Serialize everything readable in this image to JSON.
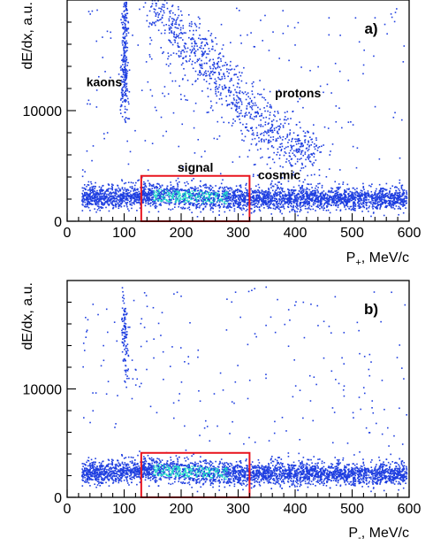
{
  "chart_data": [
    {
      "type": "scatter",
      "panel_label": "a)",
      "xlabel": "P",
      "xlabel_sub": "+",
      "xlabel_unit": ", MeV/c",
      "ylabel": "dE/dx, a.u.",
      "xlim": [
        0,
        600
      ],
      "ylim": [
        0,
        20000
      ],
      "x_ticks": [
        0,
        100,
        200,
        300,
        400,
        500,
        600
      ],
      "y_tick_labels": [
        "0",
        "10000"
      ],
      "y_ticks": [
        0,
        10000
      ],
      "annotations": [
        {
          "text": "kaons",
          "x": 65,
          "y": 12200
        },
        {
          "text": "protons",
          "x": 405,
          "y": 11200
        },
        {
          "text": "signal",
          "x": 225,
          "y": 4500
        },
        {
          "text": "cosmic",
          "x": 372,
          "y": 3800
        }
      ],
      "selection_box": {
        "x": [
          130,
          320
        ],
        "y": [
          0,
          4100
        ],
        "color": "#e8141e"
      },
      "populations": [
        {
          "name": "kaons",
          "points": [
            [
              100,
              16500
            ],
            [
              98,
              15000
            ],
            [
              102,
              14000
            ],
            [
              100,
              13000
            ],
            [
              97,
              12000
            ],
            [
              101,
              11500
            ],
            [
              99,
              17500
            ],
            [
              103,
              18500
            ]
          ]
        },
        {
          "name": "protons",
          "points": [
            [
              155,
              19500
            ],
            [
              175,
              18000
            ],
            [
              200,
              16500
            ],
            [
              225,
              15000
            ],
            [
              250,
              14000
            ],
            [
              275,
              12500
            ],
            [
              300,
              11000
            ],
            [
              325,
              9800
            ],
            [
              350,
              8500
            ],
            [
              375,
              7500
            ],
            [
              400,
              6800
            ],
            [
              430,
              6000
            ]
          ]
        },
        {
          "name": "signal + cosmic band",
          "points": [
            [
              30,
              2200
            ],
            [
              60,
              2250
            ],
            [
              100,
              2300
            ],
            [
              150,
              2400
            ],
            [
              200,
              2300
            ],
            [
              250,
              2200
            ],
            [
              300,
              2150
            ],
            [
              350,
              2100
            ],
            [
              400,
              2150
            ],
            [
              450,
              2100
            ],
            [
              500,
              2150
            ],
            [
              550,
              2100
            ],
            [
              590,
              2100
            ]
          ]
        }
      ]
    },
    {
      "type": "scatter",
      "panel_label": "b)",
      "xlabel": "P",
      "xlabel_sub": "-",
      "xlabel_unit": ", MeV/c",
      "ylabel": "dE/dx, a.u.",
      "xlim": [
        0,
        600
      ],
      "ylim": [
        0,
        20000
      ],
      "x_ticks": [
        0,
        100,
        200,
        300,
        400,
        500,
        600
      ],
      "y_tick_labels": [
        "0",
        "10000"
      ],
      "y_ticks": [
        0,
        10000
      ],
      "annotations": [],
      "selection_box": {
        "x": [
          130,
          320
        ],
        "y": [
          0,
          4100
        ],
        "color": "#e8141e"
      },
      "populations": [
        {
          "name": "kaons",
          "points": [
            [
              100,
              16000
            ],
            [
              97,
              14500
            ],
            [
              103,
              13500
            ],
            [
              100,
              15500
            ],
            [
              98,
              17000
            ],
            [
              102,
              12500
            ]
          ]
        },
        {
          "name": "signal + cosmic band",
          "points": [
            [
              30,
              2300
            ],
            [
              60,
              2350
            ],
            [
              100,
              2500
            ],
            [
              150,
              2600
            ],
            [
              200,
              2450
            ],
            [
              250,
              2300
            ],
            [
              300,
              2250
            ],
            [
              350,
              2250
            ],
            [
              400,
              2300
            ],
            [
              450,
              2200
            ],
            [
              500,
              2250
            ],
            [
              550,
              2200
            ],
            [
              590,
              2200
            ]
          ]
        }
      ]
    }
  ],
  "colors": {
    "points": "#1f3fe0",
    "dense": "#22d8c8",
    "selection": "#e8141e"
  }
}
